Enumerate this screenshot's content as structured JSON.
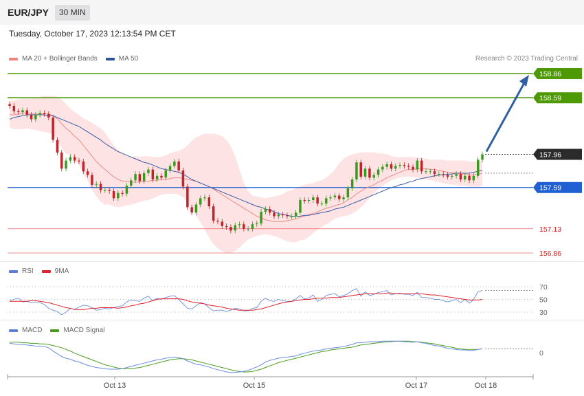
{
  "header": {
    "symbol": "EUR/JPY",
    "timeframe": "30 MIN",
    "datetime": "Tuesday, October 17, 2023 12:13:54 PM CET",
    "credit": "Research © 2023 Trading Central"
  },
  "legends": {
    "price": [
      {
        "label": "MA 20 + Bollinger Bands",
        "color": "#f48080"
      },
      {
        "label": "MA 50",
        "color": "#2f5597"
      }
    ],
    "rsi": [
      {
        "label": "RSI",
        "color": "#5b7fd6"
      },
      {
        "label": "9MA",
        "color": "#e0202a"
      }
    ],
    "macd": [
      {
        "label": "MACD",
        "color": "#5b7fd6"
      },
      {
        "label": "MACD Signal",
        "color": "#4a9a1c"
      }
    ]
  },
  "chart_data": {
    "type": "candlestick",
    "timeframe": "30 MIN",
    "x_ticks": [
      "Oct 13",
      "Oct 15",
      "Oct 17",
      "Oct 18"
    ],
    "price_levels": [
      {
        "value": 158.86,
        "label": "158.86",
        "type": "resistance",
        "color": "#4e9a06"
      },
      {
        "value": 158.59,
        "label": "158.59",
        "type": "resistance",
        "color": "#4e9a06"
      },
      {
        "value": 157.96,
        "label": "157.96",
        "type": "last_price",
        "color": "#2b2b2b"
      },
      {
        "value": 157.59,
        "label": "157.59",
        "type": "pivot",
        "color": "#1f5fd1"
      },
      {
        "value": 157.13,
        "label": "157.13",
        "type": "support",
        "color": "#e04040"
      },
      {
        "value": 156.86,
        "label": "156.86",
        "type": "support",
        "color": "#e04040"
      }
    ],
    "forecast": {
      "from": 157.96,
      "to": 158.86,
      "direction": "up"
    },
    "closes": [
      158.5,
      158.44,
      158.43,
      158.45,
      158.4,
      158.35,
      158.4,
      158.42,
      158.41,
      158.37,
      158.12,
      157.98,
      157.8,
      157.89,
      157.93,
      157.89,
      157.88,
      157.77,
      157.73,
      157.62,
      157.63,
      157.56,
      157.56,
      157.55,
      157.47,
      157.53,
      157.52,
      157.61,
      157.67,
      157.74,
      157.66,
      157.75,
      157.79,
      157.68,
      157.72,
      157.7,
      157.78,
      157.83,
      157.88,
      157.78,
      157.6,
      157.37,
      157.31,
      157.4,
      157.47,
      157.48,
      157.38,
      157.22,
      157.21,
      157.16,
      157.15,
      157.11,
      157.17,
      157.18,
      157.13,
      157.13,
      157.18,
      157.19,
      157.32,
      157.35,
      157.31,
      157.27,
      157.29,
      157.28,
      157.27,
      157.27,
      157.31,
      157.45,
      157.44,
      157.45,
      157.48,
      157.41,
      157.41,
      157.47,
      157.48,
      157.5,
      157.46,
      157.48,
      157.58,
      157.68,
      157.87,
      157.71,
      157.8,
      157.7,
      157.73,
      157.79,
      157.82,
      157.85,
      157.8,
      157.83,
      157.84,
      157.83,
      157.82,
      157.79,
      157.89,
      157.77,
      157.77,
      157.77,
      157.74,
      157.74,
      157.73,
      157.71,
      157.72,
      157.74,
      157.68,
      157.72,
      157.67,
      157.72,
      157.9,
      157.96
    ],
    "ma20": [
      158.4,
      158.4,
      158.41,
      158.42,
      158.42,
      158.41,
      158.41,
      158.41,
      158.41,
      158.41,
      158.39,
      158.36,
      158.3,
      158.25,
      158.21,
      158.16,
      158.12,
      158.06,
      158.0,
      157.94,
      157.88,
      157.83,
      157.79,
      157.75,
      157.71,
      157.68,
      157.66,
      157.66,
      157.65,
      157.65,
      157.65,
      157.66,
      157.66,
      157.67,
      157.67,
      157.68,
      157.68,
      157.69,
      157.7,
      157.7,
      157.69,
      157.68,
      157.67,
      157.66,
      157.64,
      157.62,
      157.6,
      157.57,
      157.54,
      157.51,
      157.48,
      157.45,
      157.42,
      157.39,
      157.36,
      157.33,
      157.3,
      157.27,
      157.25,
      157.23,
      157.22,
      157.21,
      157.21,
      157.21,
      157.22,
      157.23,
      157.24,
      157.26,
      157.27,
      157.29,
      157.3,
      157.32,
      157.34,
      157.36,
      157.37,
      157.39,
      157.4,
      157.42,
      157.45,
      157.48,
      157.52,
      157.55,
      157.58,
      157.6,
      157.62,
      157.65,
      157.67,
      157.7,
      157.72,
      157.74,
      157.76,
      157.78,
      157.79,
      157.79,
      157.8,
      157.8,
      157.8,
      157.79,
      157.79,
      157.78,
      157.77,
      157.76,
      157.76,
      157.75,
      157.74,
      157.74,
      157.73,
      157.73,
      157.74,
      157.75
    ],
    "ma50": [
      158.35,
      158.37,
      158.38,
      158.39,
      158.4,
      158.4,
      158.4,
      158.4,
      158.4,
      158.39,
      158.39,
      158.37,
      158.35,
      158.33,
      158.31,
      158.29,
      158.27,
      158.24,
      158.21,
      158.18,
      158.15,
      158.12,
      158.08,
      158.05,
      158.02,
      157.99,
      157.97,
      157.95,
      157.93,
      157.91,
      157.89,
      157.87,
      157.86,
      157.84,
      157.82,
      157.8,
      157.79,
      157.78,
      157.77,
      157.76,
      157.74,
      157.71,
      157.68,
      157.66,
      157.64,
      157.62,
      157.6,
      157.58,
      157.56,
      157.54,
      157.52,
      157.5,
      157.48,
      157.46,
      157.44,
      157.42,
      157.4,
      157.38,
      157.37,
      157.35,
      157.34,
      157.32,
      157.3,
      157.29,
      157.28,
      157.27,
      157.27,
      157.27,
      157.28,
      157.28,
      157.29,
      157.3,
      157.31,
      157.32,
      157.33,
      157.35,
      157.36,
      157.37,
      157.39,
      157.41,
      157.43,
      157.45,
      157.47,
      157.49,
      157.51,
      157.53,
      157.55,
      157.57,
      157.59,
      157.6,
      157.62,
      157.63,
      157.65,
      157.66,
      157.68,
      157.69,
      157.7,
      157.71,
      157.72,
      157.73,
      157.73,
      157.74,
      157.74,
      157.75,
      157.75,
      157.75,
      157.75,
      157.76,
      157.77,
      157.78
    ],
    "bollinger": {
      "upper": [
        158.55,
        158.56,
        158.57,
        158.58,
        158.58,
        158.58,
        158.59,
        158.6,
        158.61,
        158.61,
        158.61,
        158.6,
        158.57,
        158.52,
        158.47,
        158.43,
        158.4,
        158.36,
        158.34,
        158.31,
        158.28,
        158.25,
        158.2,
        158.13,
        158.06,
        158.01,
        157.97,
        157.94,
        157.93,
        157.94,
        157.93,
        157.94,
        157.94,
        157.93,
        157.93,
        157.93,
        157.95,
        157.97,
        157.99,
        158.0,
        158.02,
        158.06,
        158.11,
        158.15,
        158.17,
        158.19,
        158.19,
        158.19,
        158.18,
        158.16,
        158.12,
        158.05,
        157.94,
        157.79,
        157.64,
        157.55,
        157.5,
        157.49,
        157.48,
        157.47,
        157.48,
        157.49,
        157.5,
        157.52,
        157.55,
        157.56,
        157.58,
        157.6,
        157.62,
        157.63,
        157.64,
        157.66,
        157.67,
        157.7,
        157.74,
        157.79,
        157.86,
        157.91,
        157.94,
        157.96,
        157.97,
        157.98,
        157.98,
        157.98,
        157.98,
        157.97,
        157.97,
        157.96,
        157.94,
        157.93,
        157.93,
        157.93,
        157.93,
        157.93,
        157.92,
        157.92,
        157.91,
        157.9,
        157.9,
        157.9,
        157.9,
        157.89,
        157.89,
        157.89,
        157.89,
        157.89,
        157.88,
        157.88,
        157.88,
        157.89
      ],
      "lower": [
        158.26,
        158.24,
        158.24,
        158.24,
        158.25,
        158.24,
        158.23,
        158.22,
        158.21,
        158.2,
        158.18,
        158.12,
        158.03,
        157.97,
        157.95,
        157.9,
        157.84,
        157.75,
        157.66,
        157.57,
        157.49,
        157.43,
        157.4,
        157.4,
        157.38,
        157.37,
        157.38,
        157.39,
        157.4,
        157.41,
        157.43,
        157.44,
        157.45,
        157.47,
        157.49,
        157.51,
        157.52,
        157.52,
        157.52,
        157.51,
        157.48,
        157.43,
        157.36,
        157.28,
        157.2,
        157.12,
        157.03,
        156.96,
        156.91,
        156.88,
        156.86,
        156.86,
        156.88,
        156.92,
        156.97,
        157.01,
        157.03,
        157.05,
        157.06,
        157.07,
        157.06,
        157.05,
        157.03,
        157.01,
        156.99,
        156.98,
        156.98,
        157.0,
        157.01,
        157.04,
        157.08,
        157.12,
        157.15,
        157.18,
        157.21,
        157.24,
        157.26,
        157.27,
        157.28,
        157.3,
        157.33,
        157.37,
        157.42,
        157.47,
        157.52,
        157.57,
        157.61,
        157.64,
        157.67,
        157.69,
        157.7,
        157.71,
        157.71,
        157.71,
        157.7,
        157.69,
        157.68,
        157.67,
        157.66,
        157.65,
        157.64,
        157.63,
        157.62,
        157.62,
        157.61,
        157.61,
        157.6,
        157.6,
        157.6,
        157.61
      ]
    },
    "rsi": {
      "levels": [
        70,
        50,
        30
      ],
      "rsi_values": [
        48,
        50,
        52,
        46,
        47,
        45,
        46,
        45,
        42,
        36,
        33,
        31,
        26,
        30,
        36,
        34,
        38,
        41,
        40,
        37,
        33,
        34,
        36,
        35,
        37,
        39,
        40,
        46,
        49,
        48,
        47,
        52,
        55,
        48,
        52,
        50,
        53,
        55,
        56,
        50,
        43,
        36,
        35,
        40,
        45,
        43,
        37,
        32,
        33,
        33,
        31,
        33,
        36,
        35,
        32,
        32,
        36,
        37,
        47,
        52,
        48,
        47,
        50,
        48,
        47,
        47,
        51,
        56,
        51,
        52,
        57,
        47,
        50,
        56,
        58,
        59,
        54,
        56,
        59,
        64,
        67,
        55,
        62,
        56,
        58,
        61,
        62,
        64,
        57,
        59,
        60,
        58,
        58,
        56,
        61,
        53,
        53,
        52,
        50,
        50,
        48,
        46,
        48,
        50,
        45,
        50,
        44,
        50,
        62,
        64
      ],
      "ma9_values": [
        47,
        47,
        47,
        47,
        47,
        48,
        48,
        47,
        46,
        45,
        43,
        41,
        39,
        37,
        36,
        34,
        34,
        34,
        35,
        36,
        36,
        37,
        37,
        37,
        37,
        36,
        37,
        38,
        40,
        41,
        43,
        44,
        46,
        48,
        50,
        51,
        51,
        51,
        51,
        51,
        50,
        48,
        46,
        45,
        44,
        43,
        41,
        40,
        39,
        38,
        36,
        35,
        34,
        33,
        33,
        33,
        33,
        34,
        35,
        37,
        39,
        41,
        43,
        45,
        46,
        47,
        48,
        49,
        50,
        50,
        51,
        52,
        52,
        52,
        53,
        53,
        53,
        54,
        55,
        56,
        57,
        58,
        59,
        59,
        59,
        59,
        59,
        60,
        60,
        59,
        59,
        59,
        59,
        59,
        59,
        59,
        58,
        57,
        57,
        56,
        55,
        54,
        53,
        52,
        51,
        50,
        49,
        49,
        49,
        50
      ]
    },
    "macd": {
      "zero_line": 0,
      "macd_values": [
        0.17,
        0.16,
        0.15,
        0.15,
        0.14,
        0.13,
        0.12,
        0.12,
        0.11,
        0.09,
        0.03,
        -0.02,
        -0.07,
        -0.1,
        -0.12,
        -0.15,
        -0.17,
        -0.2,
        -0.23,
        -0.25,
        -0.27,
        -0.28,
        -0.29,
        -0.3,
        -0.3,
        -0.3,
        -0.29,
        -0.27,
        -0.25,
        -0.23,
        -0.21,
        -0.19,
        -0.17,
        -0.15,
        -0.13,
        -0.12,
        -0.1,
        -0.09,
        -0.08,
        -0.09,
        -0.11,
        -0.15,
        -0.18,
        -0.21,
        -0.22,
        -0.24,
        -0.26,
        -0.29,
        -0.31,
        -0.33,
        -0.35,
        -0.36,
        -0.36,
        -0.35,
        -0.34,
        -0.32,
        -0.29,
        -0.26,
        -0.22,
        -0.17,
        -0.14,
        -0.12,
        -0.1,
        -0.09,
        -0.08,
        -0.07,
        -0.06,
        -0.03,
        -0.01,
        0.01,
        0.03,
        0.04,
        0.05,
        0.07,
        0.08,
        0.09,
        0.1,
        0.11,
        0.13,
        0.15,
        0.18,
        0.18,
        0.19,
        0.2,
        0.2,
        0.2,
        0.21,
        0.21,
        0.21,
        0.21,
        0.21,
        0.2,
        0.2,
        0.19,
        0.2,
        0.18,
        0.17,
        0.15,
        0.13,
        0.12,
        0.1,
        0.08,
        0.07,
        0.06,
        0.05,
        0.05,
        0.04,
        0.04,
        0.06,
        0.07
      ],
      "signal_values": [
        0.19,
        0.19,
        0.19,
        0.18,
        0.18,
        0.17,
        0.17,
        0.16,
        0.16,
        0.15,
        0.13,
        0.11,
        0.09,
        0.06,
        0.03,
        -0.01,
        -0.04,
        -0.07,
        -0.1,
        -0.13,
        -0.16,
        -0.19,
        -0.22,
        -0.24,
        -0.26,
        -0.28,
        -0.29,
        -0.29,
        -0.29,
        -0.28,
        -0.27,
        -0.25,
        -0.23,
        -0.21,
        -0.19,
        -0.17,
        -0.15,
        -0.13,
        -0.12,
        -0.11,
        -0.11,
        -0.12,
        -0.13,
        -0.15,
        -0.17,
        -0.19,
        -0.21,
        -0.23,
        -0.25,
        -0.27,
        -0.29,
        -0.31,
        -0.33,
        -0.34,
        -0.35,
        -0.35,
        -0.34,
        -0.32,
        -0.3,
        -0.27,
        -0.24,
        -0.21,
        -0.18,
        -0.16,
        -0.14,
        -0.12,
        -0.1,
        -0.08,
        -0.06,
        -0.04,
        -0.02,
        0.0,
        0.02,
        0.03,
        0.05,
        0.06,
        0.07,
        0.08,
        0.09,
        0.1,
        0.12,
        0.14,
        0.15,
        0.16,
        0.17,
        0.18,
        0.19,
        0.2,
        0.2,
        0.21,
        0.21,
        0.21,
        0.21,
        0.2,
        0.2,
        0.19,
        0.18,
        0.17,
        0.16,
        0.14,
        0.13,
        0.11,
        0.1,
        0.08,
        0.07,
        0.06,
        0.06,
        0.06,
        0.06,
        0.07
      ]
    }
  }
}
